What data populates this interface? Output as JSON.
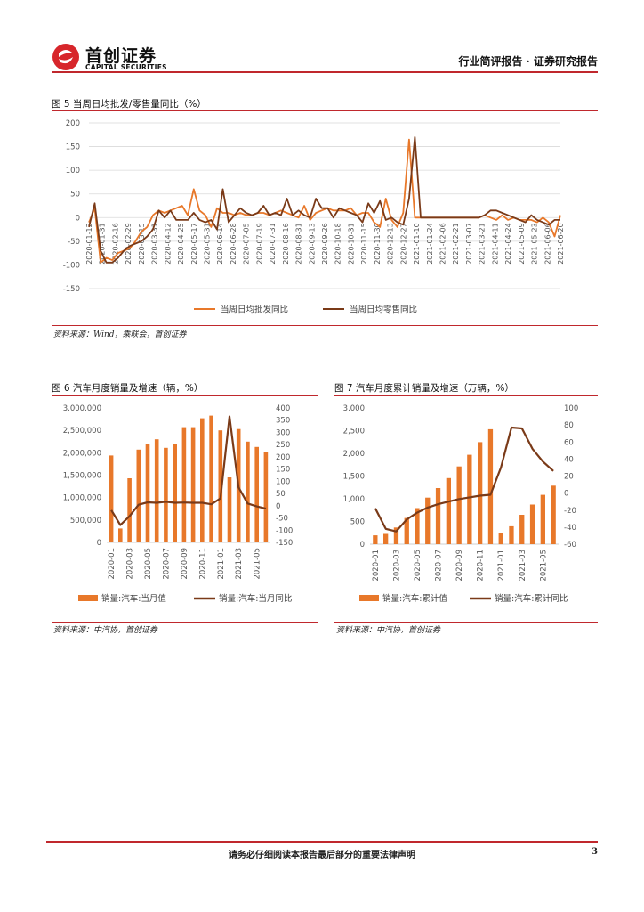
{
  "header": {
    "logo_cn": "首创证券",
    "logo_en": "CAPITAL SECURITIES",
    "right_title": "行业简评报告 · 证券研究报告"
  },
  "figures": {
    "fig5": {
      "title": "图 5 当周日均批发/零售量同比（%）",
      "source": "资料来源：Wind，乘联会，首创证券"
    },
    "fig6": {
      "title": "图 6 汽车月度销量及增速（辆，%）",
      "source": "资料来源：中汽协，首创证券"
    },
    "fig7": {
      "title": "图 7 汽车月度累计销量及增速（万辆，%）",
      "source": "资料来源：中汽协，首创证券"
    }
  },
  "footer": {
    "notice": "请务必仔细阅读本报告最后部分的重要法律声明",
    "page": "3"
  },
  "chart_data": [
    {
      "id": "fig5",
      "type": "line",
      "ylim": [
        -150,
        200
      ],
      "yticks": [
        -150,
        -100,
        -50,
        0,
        50,
        100,
        150,
        200
      ],
      "x_tick_labels": [
        "2020-01-12",
        "2020-01-31",
        "2020-02-16",
        "2020-02-29",
        "2020-03-15",
        "2020-03-31",
        "2020-04-12",
        "2020-04-25",
        "2020-05-17",
        "2020-05-31",
        "2020-06-14",
        "2020-06-28",
        "2020-07-05",
        "2020-07-19",
        "2020-07-31",
        "2020-08-16",
        "2020-08-31",
        "2020-09-13",
        "2020-09-26",
        "2020-10-18",
        "2020-10-31",
        "2020-11-15",
        "2020-11-30",
        "2020-12-13",
        "2020-12-27",
        "2021-01-10",
        "2021-01-24",
        "2021-02-06",
        "2021-02-21",
        "2021-03-07",
        "2021-03-21",
        "2021-04-11",
        "2021-04-24",
        "2021-05-09",
        "2021-05-23",
        "2021-06-06",
        "2021-06-20"
      ],
      "series": [
        {
          "name": "当周日均批发同比",
          "color": "#e8782a",
          "values": [
            -10,
            20,
            -95,
            -85,
            -90,
            -75,
            -70,
            -65,
            -50,
            -30,
            -20,
            5,
            15,
            10,
            15,
            20,
            25,
            5,
            60,
            15,
            5,
            -20,
            20,
            10,
            10,
            5,
            10,
            5,
            5,
            10,
            10,
            5,
            10,
            15,
            10,
            5,
            0,
            25,
            -5,
            10,
            15,
            20,
            15,
            15,
            15,
            20,
            5,
            10,
            10,
            -10,
            -20,
            40,
            -5,
            -20,
            10,
            165,
            0,
            0,
            0,
            0,
            0,
            0,
            0,
            0,
            0,
            0,
            0,
            0,
            5,
            0,
            -5,
            5,
            -5,
            0,
            -5,
            -5,
            -5,
            -10,
            0,
            -10,
            -40,
            5
          ]
        },
        {
          "name": "当周日均零售同比",
          "color": "#7a3a18",
          "values": [
            -20,
            30,
            -70,
            -95,
            -95,
            -85,
            -70,
            -60,
            -55,
            -50,
            -40,
            -25,
            15,
            0,
            15,
            -5,
            -5,
            -5,
            10,
            -5,
            -10,
            -5,
            -25,
            60,
            -10,
            5,
            20,
            10,
            5,
            10,
            25,
            5,
            10,
            5,
            40,
            5,
            15,
            5,
            0,
            40,
            20,
            20,
            0,
            20,
            15,
            10,
            5,
            -10,
            30,
            10,
            35,
            -5,
            0,
            -10,
            -15,
            40,
            170,
            0,
            0,
            0,
            0,
            0,
            0,
            0,
            0,
            0,
            0,
            0,
            5,
            15,
            15,
            10,
            5,
            0,
            -5,
            -10,
            5,
            -5,
            -10,
            -15,
            -5,
            -5
          ]
        }
      ],
      "legend": "bottom"
    },
    {
      "id": "fig6",
      "type": "bar",
      "categories": [
        "2020-01",
        "2020-02",
        "2020-03",
        "2020-04",
        "2020-05",
        "2020-06",
        "2020-07",
        "2020-08",
        "2020-09",
        "2020-10",
        "2020-11",
        "2020-12",
        "2021-01",
        "2021-02",
        "2021-03",
        "2021-04",
        "2021-05",
        "2021-06"
      ],
      "x_tick_labels": [
        "2020-01",
        "2020-03",
        "2020-05",
        "2020-07",
        "2020-09",
        "2020-11",
        "2021-01",
        "2021-03",
        "2021-05"
      ],
      "series": [
        {
          "name": "销量:汽车:当月值",
          "color": "#e8782a",
          "axis": "left",
          "values": [
            1940000,
            310000,
            1430000,
            2070000,
            2190000,
            2300000,
            2110000,
            2190000,
            2570000,
            2570000,
            2770000,
            2830000,
            2500000,
            1450000,
            2530000,
            2250000,
            2130000,
            2010000
          ]
        },
        {
          "name": "销量:汽车:当月同比",
          "color": "#7a3a18",
          "axis": "right",
          "values": [
            -18,
            -79,
            -43,
            4,
            14,
            12,
            16,
            12,
            13,
            12,
            12,
            6,
            30,
            365,
            75,
            9,
            -3,
            -12
          ]
        }
      ],
      "ylim_left": [
        0,
        3000000
      ],
      "yticks_left": [
        "0",
        "500,000",
        "1,000,000",
        "1,500,000",
        "2,000,000",
        "2,500,000",
        "3,000,000"
      ],
      "ylim_right": [
        -150,
        400
      ],
      "yticks_right": [
        -150,
        -100,
        -50,
        0,
        50,
        100,
        150,
        200,
        250,
        300,
        350,
        400
      ],
      "legend": "bottom"
    },
    {
      "id": "fig7",
      "type": "bar",
      "categories": [
        "2020-01",
        "2020-02",
        "2020-03",
        "2020-04",
        "2020-05",
        "2020-06",
        "2020-07",
        "2020-08",
        "2020-09",
        "2020-10",
        "2020-11",
        "2020-12",
        "2021-01",
        "2021-02",
        "2021-03",
        "2021-04",
        "2021-05",
        "2021-06"
      ],
      "x_tick_labels": [
        "2020-01",
        "2020-03",
        "2020-05",
        "2020-07",
        "2020-09",
        "2020-11",
        "2021-01",
        "2021-03",
        "2021-05"
      ],
      "series": [
        {
          "name": "销量:汽车:累计值",
          "color": "#e8782a",
          "axis": "left",
          "values": [
            194,
            225,
            367,
            576,
            795,
            1025,
            1236,
            1455,
            1711,
            1968,
            2247,
            2531,
            250,
            395,
            648,
            873,
            1086,
            1289
          ]
        },
        {
          "name": "销量:汽车:累计同比",
          "color": "#7a3a18",
          "axis": "right",
          "values": [
            -18,
            -42,
            -45,
            -31,
            -23,
            -17,
            -13,
            -10,
            -7,
            -5,
            -3,
            -2,
            30,
            77,
            76,
            52,
            37,
            26
          ]
        }
      ],
      "ylim_left": [
        0,
        3000
      ],
      "yticks_left": [
        "0",
        "500",
        "1,000",
        "1,500",
        "2,000",
        "2,500",
        "3,000"
      ],
      "ylim_right": [
        -60,
        100
      ],
      "yticks_right": [
        -60,
        -40,
        -20,
        0,
        20,
        40,
        60,
        80,
        100
      ],
      "legend": "bottom"
    }
  ]
}
